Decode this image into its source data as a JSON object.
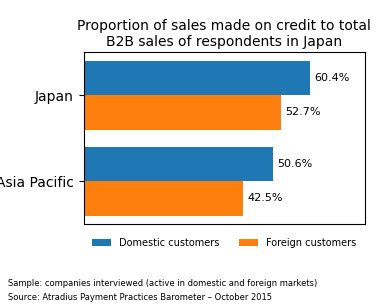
{
  "chart_data": {
    "type": "bar",
    "orientation": "horizontal",
    "title": "Proportion of sales made on credit to total\nB2B sales of respondents in Japan",
    "categories": [
      "Japan",
      "Asia Pacific"
    ],
    "series": [
      {
        "name": "Domestic customers",
        "values": [
          60.4,
          50.6
        ],
        "value_labels": [
          "60.4%",
          "50.6%"
        ]
      },
      {
        "name": "Foreign customers",
        "values": [
          52.7,
          42.5
        ],
        "value_labels": [
          "52.7%",
          "42.5%"
        ]
      }
    ],
    "xlim": [
      0,
      75
    ],
    "data_labels": true,
    "tick_labels": "y",
    "legend": "upper center",
    "grid": false,
    "annotations": [
      "Sample: companies interviewed (active in domestic and foreign markets)",
      "Source: Atradius Payment Practices Barometer – October 2015"
    ]
  }
}
